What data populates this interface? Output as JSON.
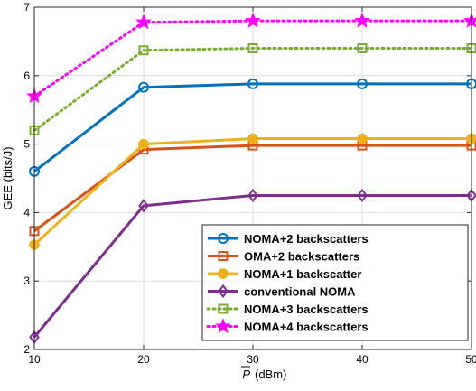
{
  "chart_data": {
    "type": "line",
    "title": "",
    "xlabel_symbol": "P",
    "xlabel_unit": "(dBm)",
    "ylabel": "GEE (bits/J)",
    "x": [
      10,
      20,
      30,
      40,
      50
    ],
    "xlim": [
      10,
      50
    ],
    "ylim": [
      2,
      7
    ],
    "xticks": [
      "10",
      "20",
      "30",
      "40",
      "50"
    ],
    "yticks": [
      "2",
      "3",
      "4",
      "5",
      "6",
      "7"
    ],
    "grid": true,
    "legend_position": "bottom-right",
    "series": [
      {
        "name": "NOMA+2 backscatters",
        "color": "#0072BD",
        "dash": "solid",
        "marker": "circle",
        "values": [
          4.6,
          5.83,
          5.88,
          5.88,
          5.88
        ]
      },
      {
        "name": "OMA+2 backscatters",
        "color": "#D95319",
        "dash": "solid",
        "marker": "square",
        "values": [
          3.73,
          4.92,
          4.98,
          4.98,
          4.98
        ]
      },
      {
        "name": "NOMA+1 backscatter",
        "color": "#EDB120",
        "dash": "solid",
        "marker": "circle-filled",
        "values": [
          3.53,
          5.0,
          5.08,
          5.08,
          5.08
        ]
      },
      {
        "name": "conventional NOMA",
        "color": "#7E2F8E",
        "dash": "solid",
        "marker": "diamond",
        "values": [
          2.18,
          4.1,
          4.25,
          4.25,
          4.25
        ]
      },
      {
        "name": "NOMA+3 backscatters",
        "color": "#77AC30",
        "dash": "dotted",
        "marker": "square",
        "values": [
          5.2,
          6.37,
          6.4,
          6.4,
          6.4
        ]
      },
      {
        "name": "NOMA+4 backscatters",
        "color": "#FF00FF",
        "dash": "dotted",
        "marker": "star",
        "values": [
          5.7,
          6.78,
          6.8,
          6.8,
          6.8
        ]
      }
    ]
  }
}
